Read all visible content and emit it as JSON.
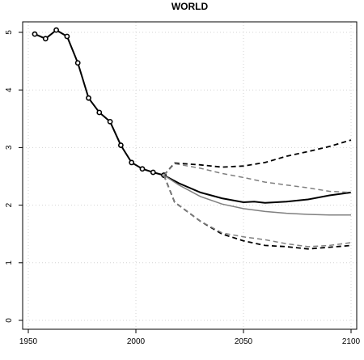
{
  "chart_data": {
    "type": "line",
    "title": "WORLD",
    "xlabel": "",
    "ylabel": "",
    "xlim": [
      1950,
      2100
    ],
    "ylim": [
      0,
      5.2
    ],
    "x_ticks": [
      1950,
      2000,
      2050,
      2100
    ],
    "y_ticks": [
      0,
      1,
      2,
      3,
      4,
      5
    ],
    "grid": true,
    "series": [
      {
        "style": "observed",
        "color": "#000000",
        "x": [
          1953,
          1958,
          1963,
          1968,
          1973,
          1978,
          1983,
          1988,
          1993,
          1998,
          2003,
          2008,
          2013
        ],
        "y": [
          4.97,
          4.89,
          5.04,
          4.93,
          4.47,
          3.86,
          3.61,
          3.45,
          3.04,
          2.74,
          2.63,
          2.57,
          2.52
        ]
      },
      {
        "style": "median",
        "color": "#000000",
        "x": [
          2013,
          2020,
          2030,
          2040,
          2050,
          2055,
          2060,
          2070,
          2080,
          2090,
          2100
        ],
        "y": [
          2.52,
          2.38,
          2.22,
          2.12,
          2.05,
          2.06,
          2.04,
          2.06,
          2.1,
          2.17,
          2.22
        ]
      },
      {
        "style": "upper-95",
        "color": "#000000",
        "x": [
          2013,
          2018,
          2030,
          2040,
          2050,
          2060,
          2070,
          2080,
          2090,
          2100
        ],
        "y": [
          2.52,
          2.73,
          2.7,
          2.66,
          2.68,
          2.74,
          2.85,
          2.93,
          3.02,
          3.13
        ]
      },
      {
        "style": "lower-95",
        "color": "#000000",
        "x": [
          2013,
          2018,
          2030,
          2040,
          2050,
          2060,
          2070,
          2080,
          2090,
          2100
        ],
        "y": [
          2.52,
          2.05,
          1.72,
          1.5,
          1.38,
          1.3,
          1.28,
          1.24,
          1.27,
          1.3
        ]
      },
      {
        "style": "alt-median",
        "color": "#808080",
        "x": [
          2013,
          2020,
          2030,
          2040,
          2050,
          2060,
          2070,
          2080,
          2090,
          2100
        ],
        "y": [
          2.52,
          2.35,
          2.15,
          2.02,
          1.94,
          1.89,
          1.86,
          1.84,
          1.83,
          1.83
        ]
      },
      {
        "style": "alt-upper-80",
        "color": "#808080",
        "x": [
          2013,
          2018,
          2030,
          2040,
          2050,
          2060,
          2070,
          2080,
          2090,
          2100
        ],
        "y": [
          2.52,
          2.72,
          2.64,
          2.55,
          2.48,
          2.4,
          2.35,
          2.3,
          2.24,
          2.22
        ]
      },
      {
        "style": "alt-lower-80",
        "color": "#808080",
        "x": [
          2013,
          2018,
          2030,
          2040,
          2050,
          2060,
          2070,
          2080,
          2090,
          2100
        ],
        "y": [
          2.52,
          2.05,
          1.72,
          1.52,
          1.45,
          1.4,
          1.33,
          1.28,
          1.3,
          1.35
        ]
      }
    ]
  }
}
